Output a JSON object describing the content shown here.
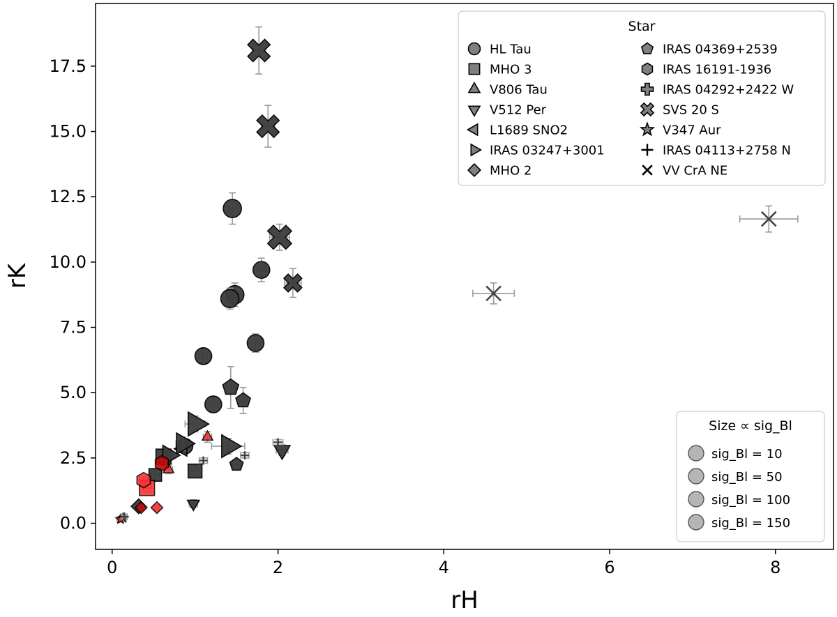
{
  "chart_data": {
    "type": "scatter",
    "xlabel": "rH",
    "ylabel": "rK",
    "xlim": [
      -0.2,
      8.7
    ],
    "ylim": [
      -1.0,
      19.9
    ],
    "xticks": [
      0,
      2,
      4,
      6,
      8
    ],
    "yticks": [
      0.0,
      2.5,
      5.0,
      7.5,
      10.0,
      12.5,
      15.0,
      17.5
    ],
    "grid": false,
    "legend_star": {
      "title": "Star",
      "placement": "top-right",
      "entries": [
        {
          "name": "HL Tau",
          "marker": "circle"
        },
        {
          "name": "MHO 3",
          "marker": "square"
        },
        {
          "name": "V806 Tau",
          "marker": "triangle-up"
        },
        {
          "name": "V512 Per",
          "marker": "triangle-down"
        },
        {
          "name": "L1689 SNO2",
          "marker": "triangle-left"
        },
        {
          "name": "IRAS 03247+3001",
          "marker": "triangle-right"
        },
        {
          "name": "MHO 2",
          "marker": "diamond"
        },
        {
          "name": "IRAS 04369+2539",
          "marker": "pentagon"
        },
        {
          "name": "IRAS 16191-1936",
          "marker": "hexagon"
        },
        {
          "name": "IRAS 04292+2422 W",
          "marker": "plus-filled"
        },
        {
          "name": "SVS 20 S",
          "marker": "x-filled"
        },
        {
          "name": "V347 Aur",
          "marker": "star"
        },
        {
          "name": "IRAS 04113+2758 N",
          "marker": "plus"
        },
        {
          "name": "VV CrA NE",
          "marker": "x"
        }
      ]
    },
    "legend_size": {
      "title": "Size ∝ sig_Bl",
      "placement": "lower-right",
      "entries": [
        "sig_Bl = 10",
        "sig_Bl = 50",
        "sig_Bl = 100",
        "sig_Bl = 150"
      ]
    },
    "colors": {
      "dark": "#3c3c3c",
      "red": "#ff2a2a",
      "darkred": "#c00000",
      "errorbar": "#9a9a9a"
    },
    "points": [
      {
        "star": "HL Tau",
        "x": 1.45,
        "y": 12.05,
        "xerr": 0.05,
        "yerr": 0.6,
        "size": 13,
        "color": "dark"
      },
      {
        "star": "HL Tau",
        "x": 1.8,
        "y": 9.7,
        "xerr": 0.05,
        "yerr": 0.45,
        "size": 12,
        "color": "dark"
      },
      {
        "star": "HL Tau",
        "x": 1.48,
        "y": 8.75,
        "xerr": 0.05,
        "yerr": 0.45,
        "size": 13,
        "color": "dark"
      },
      {
        "star": "HL Tau",
        "x": 1.42,
        "y": 8.6,
        "xerr": 0.05,
        "yerr": 0.4,
        "size": 13,
        "color": "dark"
      },
      {
        "star": "HL Tau",
        "x": 1.73,
        "y": 6.9,
        "xerr": 0.05,
        "yerr": 0.35,
        "size": 12,
        "color": "dark"
      },
      {
        "star": "HL Tau",
        "x": 1.1,
        "y": 6.4,
        "xerr": 0.05,
        "yerr": 0.3,
        "size": 12,
        "color": "dark"
      },
      {
        "star": "HL Tau",
        "x": 1.22,
        "y": 4.55,
        "xerr": 0.05,
        "yerr": 0.3,
        "size": 12,
        "color": "dark"
      },
      {
        "star": "HL Tau",
        "x": 0.88,
        "y": 2.95,
        "xerr": 0.04,
        "yerr": 0.15,
        "size": 11,
        "color": "dark"
      },
      {
        "star": "MHO 3",
        "x": 0.62,
        "y": 2.55,
        "xerr": 0.05,
        "yerr": 0.2,
        "size": 12,
        "color": "dark"
      },
      {
        "star": "MHO 3",
        "x": 0.52,
        "y": 1.85,
        "xerr": 0.05,
        "yerr": 0.2,
        "size": 10,
        "color": "dark"
      },
      {
        "star": "MHO 3",
        "x": 1.0,
        "y": 2.0,
        "xerr": 0.05,
        "yerr": 0.25,
        "size": 11,
        "color": "dark"
      },
      {
        "star": "MHO 3",
        "x": 0.42,
        "y": 1.35,
        "xerr": 0.05,
        "yerr": 0.15,
        "size": 12,
        "color": "red"
      },
      {
        "star": "V806 Tau",
        "x": 1.15,
        "y": 3.3,
        "xerr": 0.05,
        "yerr": 0.2,
        "size": 8,
        "color": "red"
      },
      {
        "star": "V806 Tau",
        "x": 0.68,
        "y": 2.05,
        "xerr": 0.05,
        "yerr": 0.15,
        "size": 8,
        "color": "red"
      },
      {
        "star": "V512 Per",
        "x": 2.05,
        "y": 2.8,
        "xerr": 0.07,
        "yerr": 0.2,
        "size": 12,
        "color": "dark"
      },
      {
        "star": "V512 Per",
        "x": 0.98,
        "y": 0.75,
        "xerr": 0.05,
        "yerr": 0.15,
        "size": 9,
        "color": "dark"
      },
      {
        "star": "L1689 SNO2",
        "x": 0.85,
        "y": 2.85,
        "xerr": 0.05,
        "yerr": 0.15,
        "size": 11,
        "color": "dark"
      },
      {
        "star": "IRAS 03247+3001",
        "x": 1.0,
        "y": 3.8,
        "xerr": 0.12,
        "yerr": 0.3,
        "size": 18,
        "color": "dark"
      },
      {
        "star": "IRAS 03247+3001",
        "x": 1.4,
        "y": 2.95,
        "xerr": 0.2,
        "yerr": 0.3,
        "size": 17,
        "color": "dark"
      },
      {
        "star": "IRAS 03247+3001",
        "x": 0.85,
        "y": 3.05,
        "xerr": 0.08,
        "yerr": 0.25,
        "size": 16,
        "color": "dark"
      },
      {
        "star": "IRAS 03247+3001",
        "x": 0.68,
        "y": 2.6,
        "xerr": 0.06,
        "yerr": 0.2,
        "size": 15,
        "color": "dark"
      },
      {
        "star": "MHO 2",
        "x": 0.32,
        "y": 0.65,
        "xerr": 0.03,
        "yerr": 0.08,
        "size": 10,
        "color": "dark"
      },
      {
        "star": "MHO 2",
        "x": 0.35,
        "y": 0.6,
        "xerr": 0.03,
        "yerr": 0.08,
        "size": 8,
        "color": "darkred"
      },
      {
        "star": "MHO 2",
        "x": 0.54,
        "y": 0.6,
        "xerr": 0.03,
        "yerr": 0.08,
        "size": 8,
        "color": "red"
      },
      {
        "star": "IRAS 04369+2539",
        "x": 1.43,
        "y": 5.2,
        "xerr": 0.05,
        "yerr": 0.8,
        "size": 12,
        "color": "dark"
      },
      {
        "star": "IRAS 04369+2539",
        "x": 1.58,
        "y": 4.7,
        "xerr": 0.05,
        "yerr": 0.5,
        "size": 11,
        "color": "dark"
      },
      {
        "star": "IRAS 04369+2539",
        "x": 1.5,
        "y": 2.25,
        "xerr": 0.05,
        "yerr": 0.15,
        "size": 10,
        "color": "dark"
      },
      {
        "star": "IRAS 16191-1936",
        "x": 0.38,
        "y": 1.65,
        "xerr": 0.05,
        "yerr": 0.12,
        "size": 11,
        "color": "red"
      },
      {
        "star": "IRAS 16191-1936",
        "x": 0.6,
        "y": 2.3,
        "xerr": 0.05,
        "yerr": 0.12,
        "size": 11,
        "color": "darkred"
      },
      {
        "star": "SVS 20 S",
        "x": 1.77,
        "y": 18.1,
        "xerr": 0.08,
        "yerr": 0.9,
        "size": 15,
        "color": "dark"
      },
      {
        "star": "SVS 20 S",
        "x": 1.88,
        "y": 15.2,
        "xerr": 0.08,
        "yerr": 0.8,
        "size": 15,
        "color": "dark"
      },
      {
        "star": "SVS 20 S",
        "x": 2.02,
        "y": 10.95,
        "xerr": 0.12,
        "yerr": 0.5,
        "size": 16,
        "color": "dark"
      },
      {
        "star": "SVS 20 S",
        "x": 2.18,
        "y": 9.2,
        "xerr": 0.1,
        "yerr": 0.55,
        "size": 12,
        "color": "dark"
      },
      {
        "star": "V347 Aur",
        "x": 0.13,
        "y": 0.2,
        "xerr": 0.04,
        "yerr": 0.05,
        "size": 6,
        "color": "dark"
      },
      {
        "star": "V347 Aur",
        "x": 0.1,
        "y": 0.15,
        "xerr": 0.04,
        "yerr": 0.05,
        "size": 6,
        "color": "red"
      },
      {
        "star": "IRAS 04113+2758 N",
        "x": 2.0,
        "y": 3.1,
        "xerr": 0.06,
        "yerr": 0.1,
        "size": 6,
        "color": "dark"
      },
      {
        "star": "IRAS 04113+2758 N",
        "x": 1.1,
        "y": 2.4,
        "xerr": 0.05,
        "yerr": 0.1,
        "size": 6,
        "color": "dark"
      },
      {
        "star": "IRAS 04113+2758 N",
        "x": 1.6,
        "y": 2.6,
        "xerr": 0.05,
        "yerr": 0.1,
        "size": 6,
        "color": "dark"
      },
      {
        "star": "IRAS 04113+2758 N",
        "x": 0.15,
        "y": 0.25,
        "xerr": 0.03,
        "yerr": 0.05,
        "size": 6,
        "color": "dark"
      },
      {
        "star": "VV CrA NE",
        "x": 4.6,
        "y": 8.8,
        "xerr": 0.25,
        "yerr": 0.4,
        "size": 13,
        "color": "dark"
      },
      {
        "star": "VV CrA NE",
        "x": 7.92,
        "y": 11.65,
        "xerr": 0.35,
        "yerr": 0.5,
        "size": 13,
        "color": "dark"
      }
    ]
  }
}
